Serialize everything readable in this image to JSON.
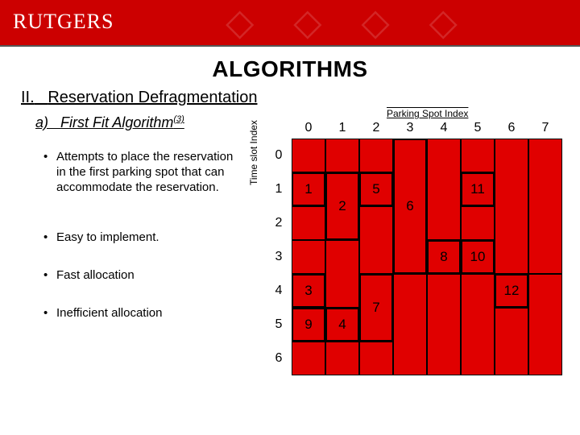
{
  "brand": "RUTGERS",
  "title": "ALGORITHMS",
  "subtitle_prefix": "II.",
  "subtitle_text": "Reservation Defragmentation",
  "subsub_prefix": "a)",
  "subsub_text": "First Fit Algorithm",
  "subsub_ref": "(3)",
  "bullets": [
    "Attempts to place the reservation in the first parking spot that can accommodate the reservation.",
    "Easy to implement.",
    "Fast allocation",
    "Inefficient allocation"
  ],
  "chart": {
    "x_label": "Parking Spot Index",
    "y_label": "Time slot Index",
    "cols": 8,
    "rows": 7,
    "cell": 42,
    "base_color": "#00a000",
    "col_headers": [
      "0",
      "1",
      "2",
      "3",
      "4",
      "5",
      "6",
      "7"
    ],
    "row_headers": [
      "0",
      "1",
      "2",
      "3",
      "4",
      "5",
      "6"
    ],
    "blocks": [
      {
        "label": "1",
        "col": 0,
        "row": 1,
        "w": 1,
        "h": 1,
        "color": "#e00000"
      },
      {
        "label": "2",
        "col": 1,
        "row": 1,
        "w": 1,
        "h": 2,
        "color": "#e00000"
      },
      {
        "label": "5",
        "col": 2,
        "row": 1,
        "w": 1,
        "h": 1,
        "color": "#e00000"
      },
      {
        "label": "6",
        "col": 3,
        "row": 0,
        "w": 1,
        "h": 4,
        "color": "#e00000"
      },
      {
        "label": "11",
        "col": 5,
        "row": 1,
        "w": 1,
        "h": 1,
        "color": "#e00000"
      },
      {
        "label": "8",
        "col": 4,
        "row": 3,
        "w": 1,
        "h": 1,
        "color": "#e00000"
      },
      {
        "label": "10",
        "col": 5,
        "row": 3,
        "w": 1,
        "h": 1,
        "color": "#e00000"
      },
      {
        "label": "3",
        "col": 0,
        "row": 4,
        "w": 1,
        "h": 1,
        "color": "#e00000"
      },
      {
        "label": "7",
        "col": 2,
        "row": 4,
        "w": 1,
        "h": 2,
        "color": "#e00000"
      },
      {
        "label": "12",
        "col": 6,
        "row": 4,
        "w": 1,
        "h": 1,
        "color": "#e00000"
      },
      {
        "label": "9",
        "col": 0,
        "row": 5,
        "w": 1,
        "h": 1,
        "color": "#e00000"
      },
      {
        "label": "4",
        "col": 1,
        "row": 5,
        "w": 1,
        "h": 1,
        "color": "#e00000"
      }
    ],
    "red_fills": [
      {
        "col": 0,
        "row": 0,
        "w": 1,
        "h": 1
      },
      {
        "col": 1,
        "row": 0,
        "w": 1,
        "h": 1
      },
      {
        "col": 2,
        "row": 0,
        "w": 1,
        "h": 1
      },
      {
        "col": 5,
        "row": 0,
        "w": 1,
        "h": 1
      },
      {
        "col": 7,
        "row": 0,
        "w": 1,
        "h": 4
      },
      {
        "col": 0,
        "row": 2,
        "w": 1,
        "h": 1
      },
      {
        "col": 4,
        "row": 0,
        "w": 1,
        "h": 3
      },
      {
        "col": 5,
        "row": 2,
        "w": 1,
        "h": 1
      },
      {
        "col": 6,
        "row": 0,
        "w": 1,
        "h": 4
      },
      {
        "col": 2,
        "row": 2,
        "w": 1,
        "h": 2
      },
      {
        "col": 0,
        "row": 3,
        "w": 1,
        "h": 1
      },
      {
        "col": 1,
        "row": 3,
        "w": 1,
        "h": 2
      },
      {
        "col": 4,
        "row": 4,
        "w": 1,
        "h": 3
      },
      {
        "col": 5,
        "row": 4,
        "w": 1,
        "h": 3
      },
      {
        "col": 7,
        "row": 4,
        "w": 1,
        "h": 3
      },
      {
        "col": 6,
        "row": 5,
        "w": 1,
        "h": 2
      },
      {
        "col": 0,
        "row": 6,
        "w": 1,
        "h": 1
      },
      {
        "col": 3,
        "row": 4,
        "w": 1,
        "h": 3
      },
      {
        "col": 1,
        "row": 6,
        "w": 1,
        "h": 1
      },
      {
        "col": 2,
        "row": 6,
        "w": 1,
        "h": 1
      }
    ]
  }
}
